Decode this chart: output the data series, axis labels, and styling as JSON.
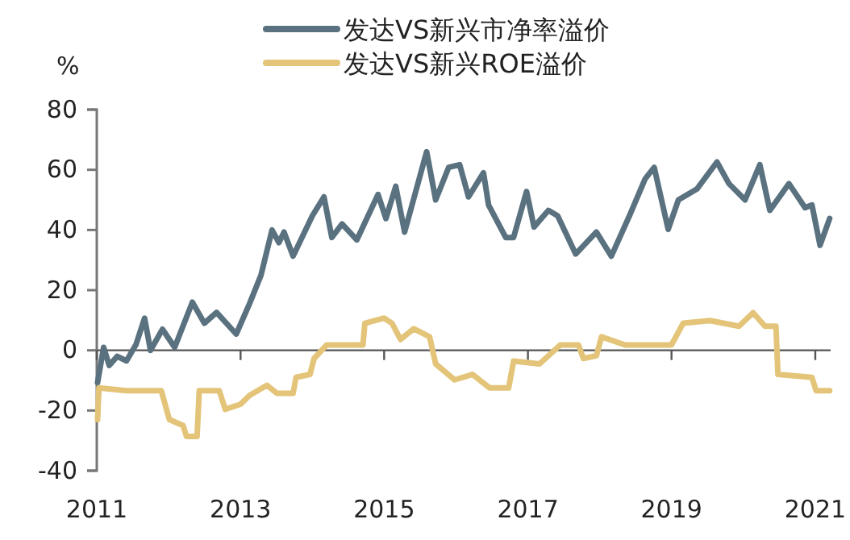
{
  "chart_data": {
    "type": "line",
    "ylabel": "%",
    "legend": "top",
    "xlim": [
      "2011-01-01",
      "2021-03-20"
    ],
    "xticks": [
      "2011",
      "2013",
      "2015",
      "2017",
      "2019",
      "2021"
    ],
    "ylim": [
      -40,
      80
    ],
    "yticks": [
      -40,
      -20,
      0,
      20,
      40,
      60,
      80
    ],
    "series": [
      {
        "name": "发达VS新兴市净率溢价",
        "color": "#5a7180",
        "x": [
          "2011-01-05",
          "2011-02-05",
          "2011-03-05",
          "2011-04-15",
          "2011-06-01",
          "2011-07-20",
          "2011-09-01",
          "2011-10-01",
          "2011-12-01",
          "2012-02-01",
          "2012-05-01",
          "2012-07-01",
          "2012-09-01",
          "2012-12-10",
          "2013-02-15",
          "2013-04-15",
          "2013-06-10",
          "2013-07-15",
          "2013-08-10",
          "2013-09-25",
          "2014-01-01",
          "2014-03-01",
          "2014-04-10",
          "2014-06-01",
          "2014-08-15",
          "2014-12-01",
          "2015-01-10",
          "2015-03-01",
          "2015-04-15",
          "2015-08-05",
          "2015-09-20",
          "2015-11-25",
          "2016-01-20",
          "2016-03-05",
          "2016-05-20",
          "2016-06-15",
          "2016-09-10",
          "2016-10-20",
          "2016-12-25",
          "2017-02-01",
          "2017-04-15",
          "2017-06-01",
          "2017-09-01",
          "2017-12-15",
          "2018-03-01",
          "2018-06-01",
          "2018-08-20",
          "2018-10-05",
          "2018-12-15",
          "2019-02-05",
          "2019-05-10",
          "2019-08-20",
          "2019-10-20",
          "2020-01-10",
          "2020-03-25",
          "2020-05-15",
          "2020-08-20",
          "2020-11-10",
          "2020-12-15",
          "2021-01-25",
          "2021-03-15"
        ],
        "values": [
          -10.7,
          1,
          -5,
          -2,
          -3.5,
          2,
          10.7,
          0,
          7,
          1,
          16,
          9,
          12.6,
          5.4,
          15.4,
          25,
          40,
          35.8,
          39.3,
          31.3,
          44.7,
          51,
          37.5,
          42,
          36.7,
          51.8,
          43.8,
          54.5,
          39.3,
          66,
          50,
          60.8,
          61.7,
          51,
          59,
          48.3,
          37.5,
          37.5,
          52.8,
          41,
          46.5,
          44.7,
          32,
          39.3,
          31.3,
          44.7,
          57,
          60.8,
          40.2,
          50,
          53.6,
          62.6,
          55.4,
          50,
          61.7,
          46.5,
          55.4,
          47.4,
          48.3,
          34.9,
          43.8
        ]
      },
      {
        "name": "发达VS新兴ROE溢价",
        "color": "#e3c479",
        "x": [
          "2011-01-05",
          "2011-01-12",
          "2011-06-01",
          "2011-11-25",
          "2012-01-05",
          "2012-03-15",
          "2012-04-01",
          "2012-05-25",
          "2012-06-05",
          "2012-09-15",
          "2012-10-15",
          "2013-01-01",
          "2013-02-15",
          "2013-05-15",
          "2013-07-05",
          "2013-09-25",
          "2013-10-10",
          "2013-12-20",
          "2014-01-10",
          "2014-03-15",
          "2014-09-15",
          "2014-09-25",
          "2015-01-01",
          "2015-02-10",
          "2015-03-25",
          "2015-06-01",
          "2015-08-20",
          "2015-09-20",
          "2015-12-25",
          "2016-03-25",
          "2016-06-20",
          "2016-09-25",
          "2016-10-20",
          "2017-03-01",
          "2017-06-15",
          "2017-09-15",
          "2017-10-10",
          "2017-12-15",
          "2018-01-10",
          "2018-05-10",
          "2019-01-01",
          "2019-03-01",
          "2019-07-15",
          "2019-12-10",
          "2020-02-20",
          "2020-04-20",
          "2020-06-15",
          "2020-06-25",
          "2020-12-15",
          "2021-01-05",
          "2021-03-15"
        ],
        "values": [
          -23,
          -12.5,
          -13.4,
          -13.4,
          -23,
          -25,
          -28.6,
          -28.6,
          -13.4,
          -13.4,
          -19.6,
          -17.9,
          -15,
          -11.6,
          -14.3,
          -14.3,
          -9,
          -8,
          -2.7,
          1.8,
          1.8,
          9,
          10.7,
          9,
          3.6,
          7.2,
          4.5,
          -4.5,
          -9.8,
          -8,
          -12.5,
          -12.5,
          -3.6,
          -4.5,
          1.8,
          1.8,
          -2.7,
          -1.8,
          4.5,
          1.8,
          1.8,
          9,
          9.9,
          8,
          12.5,
          8,
          8,
          -8,
          -9,
          -13.4,
          -13.4
        ]
      }
    ]
  }
}
